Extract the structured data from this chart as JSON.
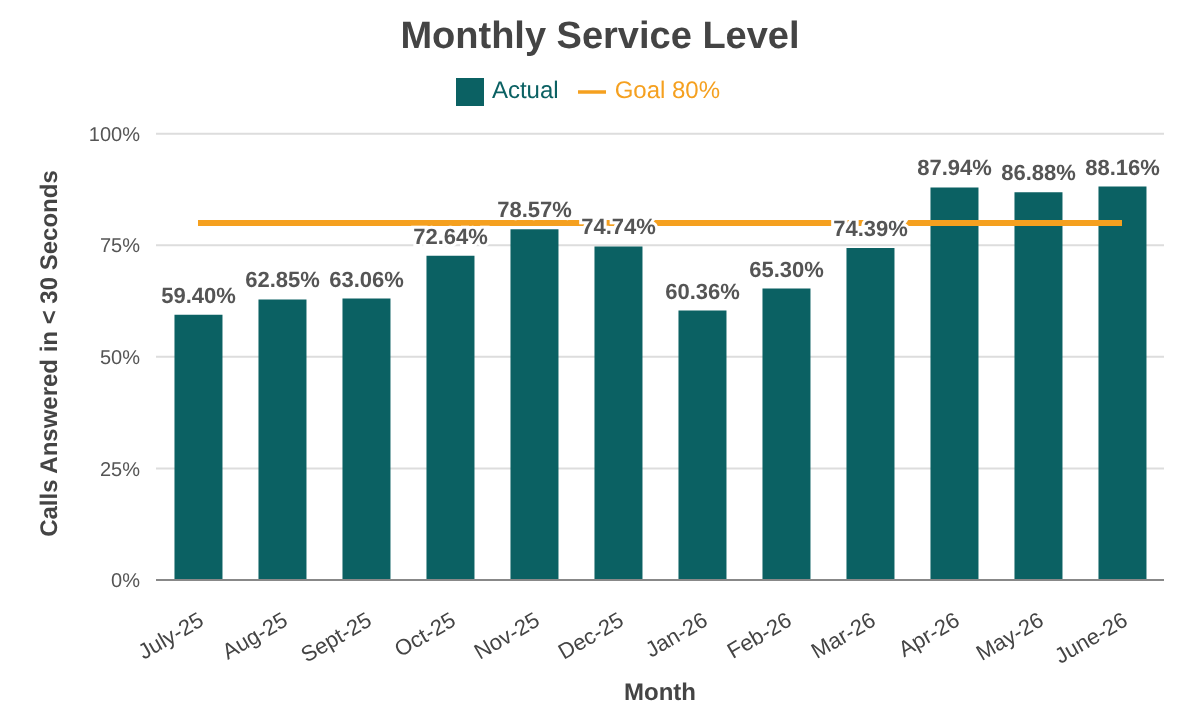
{
  "chart_data": {
    "type": "bar",
    "title": "Monthly Service Level",
    "xlabel": "Month",
    "ylabel": "Calls Answered in < 30 Seconds",
    "categories": [
      "July-25",
      "Aug-25",
      "Sept-25",
      "Oct-25",
      "Nov-25",
      "Dec-25",
      "Jan-26",
      "Feb-26",
      "Mar-26",
      "Apr-26",
      "May-26",
      "June-26"
    ],
    "series": [
      {
        "name": "Actual",
        "color": "#0b6163",
        "values": [
          59.4,
          62.85,
          63.06,
          72.64,
          78.57,
          74.74,
          60.36,
          65.3,
          74.39,
          87.94,
          86.88,
          88.16
        ],
        "value_labels": [
          "59.40%",
          "62.85%",
          "63.06%",
          "72.64%",
          "78.57%",
          "74.74%",
          "60.36%",
          "65.30%",
          "74.39%",
          "87.94%",
          "86.88%",
          "88.16%"
        ]
      },
      {
        "name": "Goal 80%",
        "type": "line",
        "color": "#f5a01f",
        "values": [
          80,
          80,
          80,
          80,
          80,
          80,
          80,
          80,
          80,
          80,
          80,
          80
        ]
      }
    ],
    "ylim": [
      0,
      100
    ],
    "yticks": [
      {
        "value": 0,
        "label": "0%"
      },
      {
        "value": 25,
        "label": "25%"
      },
      {
        "value": 50,
        "label": "50%"
      },
      {
        "value": 75,
        "label": "75%"
      },
      {
        "value": 100,
        "label": "100%"
      }
    ],
    "grid": "y",
    "legend": "top"
  }
}
